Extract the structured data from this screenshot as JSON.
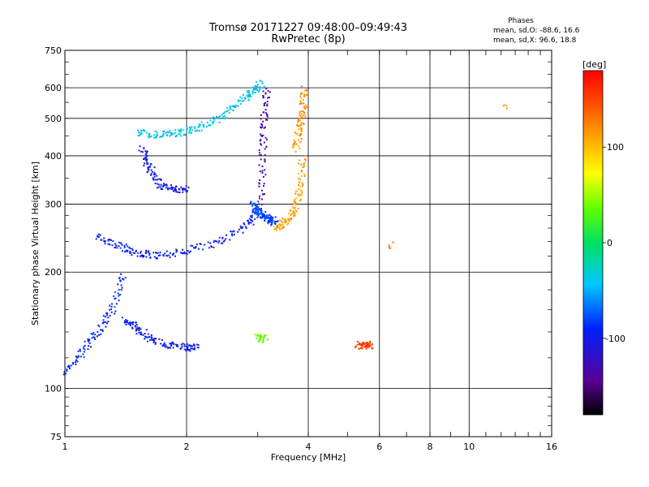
{
  "header": {
    "title_line1": "Tromsø 20171227 09:48:00–09:49:43",
    "title_line2": "RwPretec (8p)",
    "phases_title": "Phases",
    "phases_o": "mean, sd,O: -88.6, 16.6",
    "phases_x": "mean, sd,X:  96.6, 18.8"
  },
  "colorbar": {
    "unit_label": "[deg]",
    "ticks": [
      100,
      0,
      -100
    ],
    "range": [
      -180,
      180
    ]
  },
  "chart_data": {
    "type": "scatter",
    "xlabel": "Frequency [MHz]",
    "ylabel": "Stationary phase Virtual Height [km]",
    "xscale": "log",
    "yscale": "log",
    "xlim": [
      1,
      16
    ],
    "ylim": [
      75,
      750
    ],
    "x_ticks": [
      1,
      2,
      4,
      6,
      8,
      10,
      16
    ],
    "y_ticks": [
      75,
      100,
      200,
      300,
      400,
      500,
      600,
      750
    ],
    "grid": true,
    "colorbar_label": "[deg]",
    "traces": [
      {
        "x": [
          1.0,
          1.1,
          1.2,
          1.3,
          1.4
        ],
        "y": [
          110,
          125,
          140,
          160,
          200
        ],
        "phase": -90
      },
      {
        "x": [
          1.4,
          1.5,
          1.6,
          1.8,
          2.0,
          2.1
        ],
        "y": [
          150,
          145,
          135,
          130,
          128,
          128
        ],
        "phase": -95
      },
      {
        "x": [
          1.2,
          1.35,
          1.5,
          1.7,
          2.0,
          2.4,
          2.8,
          3.0
        ],
        "y": [
          250,
          235,
          225,
          222,
          228,
          240,
          265,
          290
        ],
        "phase": -95
      },
      {
        "x": [
          1.5,
          1.7,
          1.9,
          2.1,
          2.4,
          2.7,
          2.9,
          3.05
        ],
        "y": [
          460,
          455,
          460,
          470,
          500,
          550,
          590,
          620
        ],
        "phase": -40
      },
      {
        "x": [
          1.55,
          1.6,
          1.7,
          1.85,
          2.0
        ],
        "y": [
          420,
          380,
          340,
          330,
          330
        ],
        "phase": -100
      },
      {
        "x": [
          3.05,
          3.07,
          3.1,
          3.15
        ],
        "y": [
          300,
          400,
          500,
          600
        ],
        "phase": -130
      },
      {
        "x": [
          2.9,
          3.0,
          3.1,
          3.2,
          3.3
        ],
        "y": [
          300,
          290,
          280,
          275,
          270
        ],
        "phase": -80
      },
      {
        "x": [
          3.3,
          3.5,
          3.7,
          3.8,
          3.85
        ],
        "y": [
          262,
          270,
          290,
          330,
          400
        ],
        "phase": 110
      },
      {
        "x": [
          3.7,
          3.8,
          3.85,
          3.9
        ],
        "y": [
          420,
          470,
          520,
          600
        ],
        "phase": 115
      },
      {
        "x": [
          5.3,
          5.5,
          5.7
        ],
        "y": [
          130,
          130,
          130
        ],
        "phase": 150
      },
      {
        "x": [
          3.0,
          3.1
        ],
        "y": [
          136,
          135
        ],
        "phase": 40
      },
      {
        "x": [
          12.3
        ],
        "y": [
          540
        ],
        "phase": 100
      },
      {
        "x": [
          6.4
        ],
        "y": [
          235
        ],
        "phase": 140
      }
    ]
  }
}
